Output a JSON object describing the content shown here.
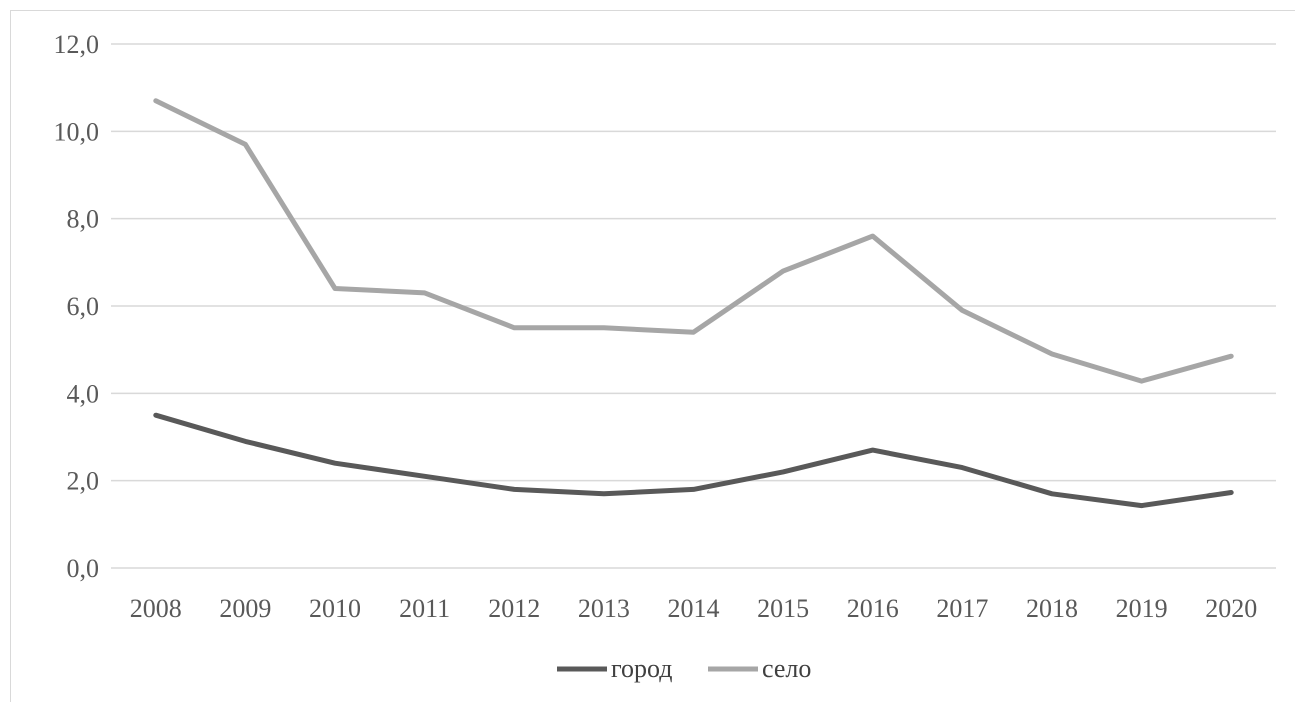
{
  "chart_data": {
    "type": "line",
    "title": "",
    "xlabel": "",
    "ylabel": "",
    "categories": [
      "2008",
      "2009",
      "2010",
      "2011",
      "2012",
      "2013",
      "2014",
      "2015",
      "2016",
      "2017",
      "2018",
      "2019",
      "2020"
    ],
    "y_tick_labels": [
      "0,0",
      "2,0",
      "4,0",
      "6,0",
      "8,0",
      "10,0",
      "12,0"
    ],
    "ylim": [
      0,
      12
    ],
    "grid": true,
    "legend_position": "bottom",
    "series": [
      {
        "name": "город",
        "color": "#595959",
        "values": [
          3.5,
          2.9,
          2.4,
          2.1,
          1.8,
          1.7,
          1.8,
          2.2,
          2.7,
          2.3,
          1.7,
          1.43,
          1.73
        ]
      },
      {
        "name": "село",
        "color": "#a6a6a6",
        "values": [
          10.7,
          9.7,
          6.4,
          6.3,
          5.5,
          5.5,
          5.4,
          6.8,
          7.6,
          5.9,
          4.9,
          4.28,
          4.85
        ]
      }
    ]
  }
}
